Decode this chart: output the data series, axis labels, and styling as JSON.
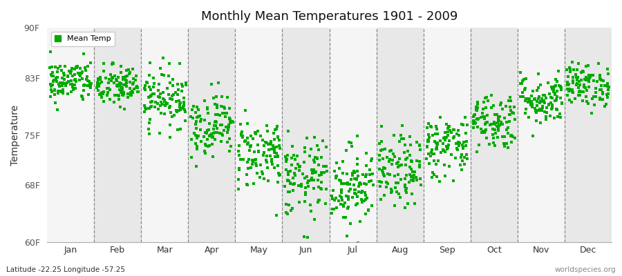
{
  "title": "Monthly Mean Temperatures 1901 - 2009",
  "ylabel": "Temperature",
  "xlabel_labels": [
    "Jan",
    "Feb",
    "Mar",
    "Apr",
    "May",
    "Jun",
    "Jul",
    "Aug",
    "Sep",
    "Oct",
    "Nov",
    "Dec"
  ],
  "ytick_labels": [
    "60F",
    "68F",
    "75F",
    "83F",
    "90F"
  ],
  "ytick_values": [
    60,
    68,
    75,
    83,
    90
  ],
  "ylim": [
    60,
    90
  ],
  "legend_label": "Mean Temp",
  "marker_color": "#00AA00",
  "footnote_left": "Latitude -22.25 Longitude -57.25",
  "footnote_right": "worldspecies.org",
  "bg_color_light": "#e8e8e8",
  "bg_color_white": "#f5f5f5",
  "n_years": 109,
  "monthly_means": [
    82.5,
    81.8,
    80.2,
    76.5,
    72.5,
    68.8,
    68.0,
    69.8,
    73.5,
    77.0,
    80.0,
    82.0
  ],
  "monthly_stds": [
    1.5,
    1.5,
    2.0,
    2.2,
    2.5,
    2.8,
    2.8,
    2.5,
    2.2,
    2.0,
    1.8,
    1.5
  ],
  "seed": 42,
  "figsize": [
    9.0,
    4.0
  ],
  "dpi": 100
}
